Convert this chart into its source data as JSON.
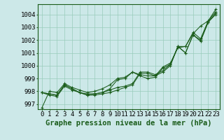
{
  "xlabel": "Graphe pression niveau de la mer (hPa)",
  "bg_color": "#cce8e8",
  "grid_color": "#99ccbb",
  "line_color": "#1a5c1a",
  "x": [
    0,
    1,
    2,
    3,
    4,
    5,
    6,
    7,
    8,
    9,
    10,
    11,
    12,
    13,
    14,
    15,
    16,
    17,
    18,
    19,
    20,
    21,
    22,
    23
  ],
  "line1": [
    996.7,
    998.0,
    997.9,
    998.6,
    998.3,
    998.1,
    997.9,
    998.0,
    998.2,
    998.5,
    999.0,
    999.1,
    999.5,
    999.3,
    999.2,
    999.2,
    999.9,
    1000.2,
    1001.4,
    1001.5,
    1002.5,
    1003.1,
    1003.5,
    1004.4
  ],
  "line2": [
    997.9,
    997.8,
    997.7,
    998.5,
    998.2,
    997.9,
    997.7,
    997.8,
    997.9,
    998.2,
    998.9,
    999.0,
    999.5,
    999.2,
    999.0,
    999.1,
    999.8,
    1000.1,
    1001.5,
    1001.0,
    1002.4,
    1001.9,
    1003.4,
    1004.1
  ],
  "line3": [
    997.9,
    997.8,
    997.7,
    998.5,
    998.2,
    997.9,
    997.8,
    997.8,
    997.9,
    998.1,
    998.3,
    998.4,
    998.6,
    999.5,
    999.5,
    999.3,
    999.6,
    1000.1,
    1001.5,
    1001.5,
    1002.6,
    1002.1,
    1003.5,
    1004.2
  ],
  "line4": [
    997.9,
    997.7,
    997.6,
    998.4,
    998.1,
    997.9,
    997.7,
    997.7,
    997.8,
    997.9,
    998.1,
    998.3,
    998.5,
    999.4,
    999.4,
    999.2,
    999.5,
    1000.0,
    1001.5,
    1001.0,
    1002.4,
    1002.0,
    1003.4,
    1004.0
  ],
  "ylim": [
    996.6,
    1004.8
  ],
  "yticks": [
    997,
    998,
    999,
    1000,
    1001,
    1002,
    1003,
    1004
  ],
  "xticks": [
    0,
    1,
    2,
    3,
    4,
    5,
    6,
    7,
    8,
    9,
    10,
    11,
    12,
    13,
    14,
    15,
    16,
    17,
    18,
    19,
    20,
    21,
    22,
    23
  ],
  "xlabel_fontsize": 7.5,
  "tick_fontsize": 6.5
}
